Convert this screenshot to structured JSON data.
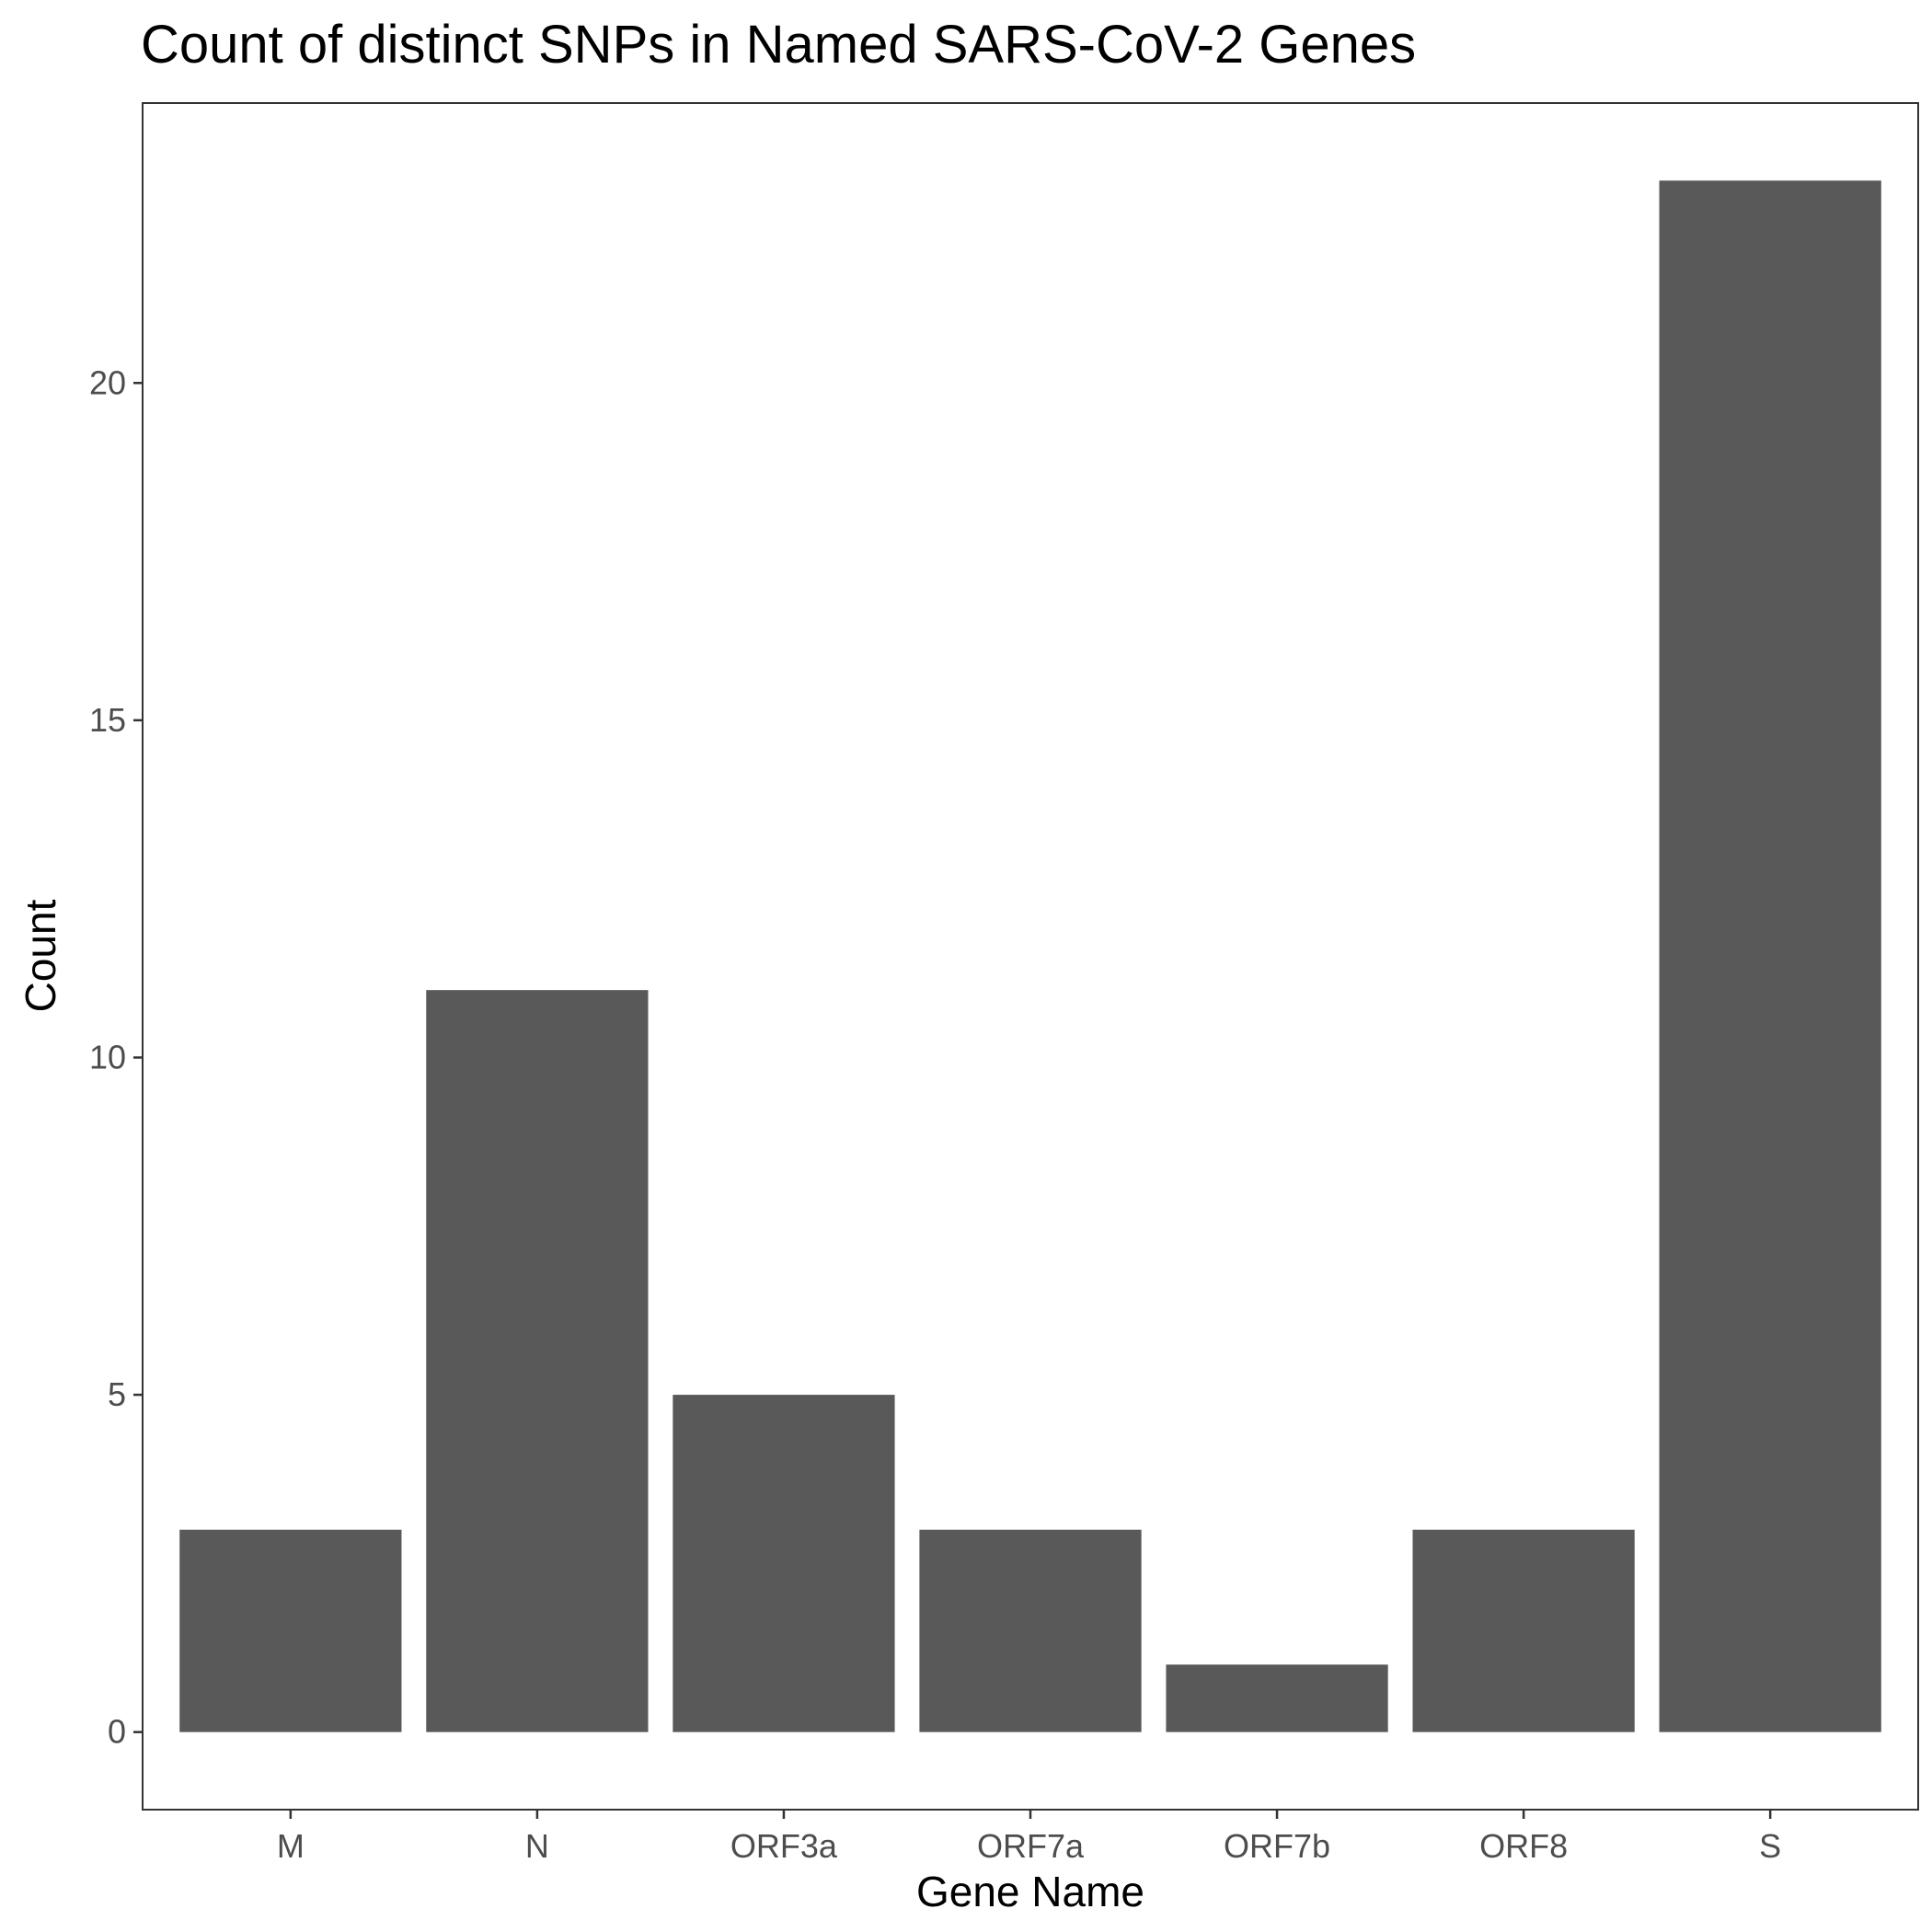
{
  "chart_data": {
    "type": "bar",
    "title": "Count of distinct SNPs in Named SARS-CoV-2 Genes",
    "xlabel": "Gene Name",
    "ylabel": "Count",
    "categories": [
      "M",
      "N",
      "ORF3a",
      "ORF7a",
      "ORF7b",
      "ORF8",
      "S"
    ],
    "values": [
      3,
      11,
      5,
      3,
      1,
      3,
      23
    ],
    "ylim": [
      -1.15,
      24.15
    ],
    "yticks": [
      0,
      5,
      10,
      15,
      20
    ],
    "grid": false,
    "legend": "none",
    "colors": {
      "bar": "#595959",
      "panel_border": "#333333",
      "tick_mark": "#333333",
      "tick_label": "#4d4d4d",
      "text": "#000000",
      "background": "#ffffff"
    }
  }
}
